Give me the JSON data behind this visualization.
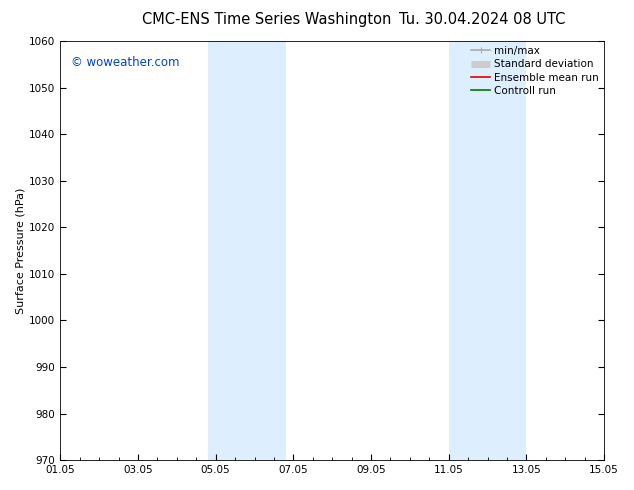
{
  "title_left": "CMC-ENS Time Series Washington",
  "title_right": "Tu. 30.04.2024 08 UTC",
  "ylabel": "Surface Pressure (hPa)",
  "ylim": [
    970,
    1060
  ],
  "yticks": [
    970,
    980,
    990,
    1000,
    1010,
    1020,
    1030,
    1040,
    1050,
    1060
  ],
  "xlim_start": 0,
  "xlim_end": 14,
  "xtick_positions": [
    0,
    2,
    4,
    6,
    8,
    10,
    12,
    14
  ],
  "xtick_labels": [
    "01.05",
    "03.05",
    "05.05",
    "07.05",
    "09.05",
    "11.05",
    "13.05",
    "15.05"
  ],
  "shaded_bands": [
    {
      "xmin": 3.8,
      "xmax": 5.8
    },
    {
      "xmin": 10.0,
      "xmax": 12.0
    }
  ],
  "band_color": "#ddeeff",
  "background_color": "#ffffff",
  "watermark_text": "© woweather.com",
  "watermark_color": "#0044cc",
  "legend_entries": [
    {
      "label": "min/max",
      "color": "#aaaaaa",
      "lw": 1.2,
      "type": "minmax"
    },
    {
      "label": "Standard deviation",
      "color": "#cccccc",
      "lw": 5,
      "type": "band"
    },
    {
      "label": "Ensemble mean run",
      "color": "#dd0000",
      "lw": 1.2,
      "type": "line"
    },
    {
      "label": "Controll run",
      "color": "#007700",
      "lw": 1.2,
      "type": "line"
    }
  ],
  "title_fontsize": 10.5,
  "axis_label_fontsize": 8,
  "tick_fontsize": 7.5,
  "watermark_fontsize": 8.5,
  "legend_fontsize": 7.5,
  "fig_width": 6.34,
  "fig_height": 4.9,
  "dpi": 100
}
